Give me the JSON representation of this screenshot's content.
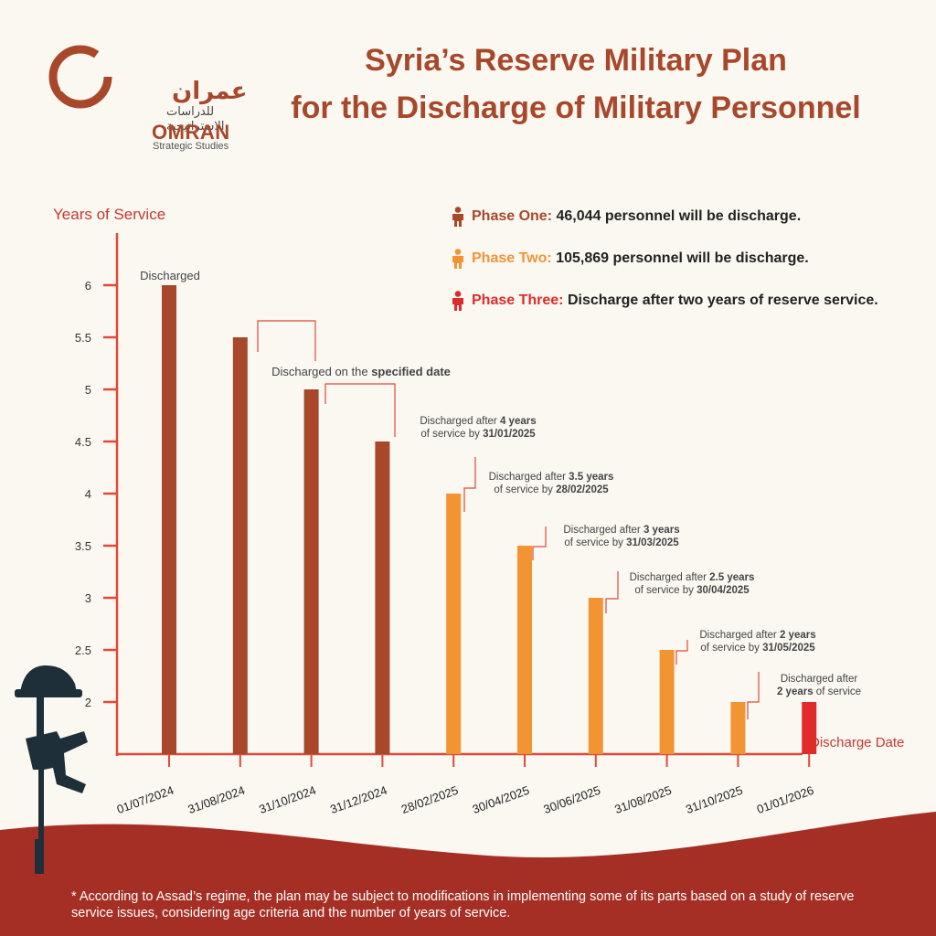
{
  "logo": {
    "arabic": "عمران",
    "arabic_sub": "للدراسات الاستراتيجية",
    "name": "OMRAN",
    "subtitle": "Strategic Studies"
  },
  "title": {
    "line1": "Syria’s Reserve Military Plan",
    "line2": "for the Discharge of Military Personnel"
  },
  "legend": [
    {
      "label": "Phase One:",
      "text": "46,044 personnel will be discharge.",
      "color": "#a8472a"
    },
    {
      "label": "Phase Two:",
      "text": "105,869 personnel will be discharge.",
      "color": "#f39433"
    },
    {
      "label": "Phase Three:",
      "text": "Discharge after two years of reserve service.",
      "color": "#e02b2b"
    }
  ],
  "chart_data": {
    "type": "bar",
    "ylabel": "Years of Service",
    "xlabel": "Discharge Date",
    "ylim": [
      1.5,
      6.5
    ],
    "yticks": [
      2,
      2.5,
      3,
      3.5,
      4,
      4.5,
      5,
      5.5,
      6
    ],
    "categories": [
      "01/07/2024",
      "31/08/2024",
      "31/10/2024",
      "31/12/2024",
      "28/02/2025",
      "30/04/2025",
      "30/06/2025",
      "31/08/2025",
      "31/10/2025",
      "01/01/2026"
    ],
    "values": [
      6,
      5.5,
      5,
      4.5,
      4,
      3.5,
      3,
      2.5,
      2,
      2
    ],
    "phases": [
      "Phase One",
      "Phase One",
      "Phase One",
      "Phase One",
      "Phase Two",
      "Phase Two",
      "Phase Two",
      "Phase Two",
      "Phase Two",
      "Phase Three"
    ],
    "colors": {
      "Phase One": "#a8472a",
      "Phase Two": "#f39433",
      "Phase Three": "#e02b2b",
      "axis": "#e0493a"
    },
    "annotations": [
      {
        "bar": 0,
        "line1": [
          [
            "Discharged",
            false
          ]
        ],
        "line2": []
      },
      {
        "bar": 2,
        "line1": [
          [
            "Discharged on the ",
            false
          ],
          [
            "specified date",
            true
          ]
        ],
        "line2": []
      },
      {
        "bar": 3,
        "line1": [
          [
            "Discharged after ",
            false
          ],
          [
            "4 years",
            true
          ]
        ],
        "line2": [
          [
            "of service by ",
            false
          ],
          [
            "31/01/2025",
            true
          ]
        ]
      },
      {
        "bar": 4,
        "line1": [
          [
            "Discharged after ",
            false
          ],
          [
            "3.5 years",
            true
          ]
        ],
        "line2": [
          [
            "of service by ",
            false
          ],
          [
            "28/02/2025",
            true
          ]
        ]
      },
      {
        "bar": 5,
        "line1": [
          [
            "Discharged after ",
            false
          ],
          [
            "3 years",
            true
          ]
        ],
        "line2": [
          [
            "of service by ",
            false
          ],
          [
            "31/03/2025",
            true
          ]
        ]
      },
      {
        "bar": 6,
        "line1": [
          [
            "Discharged after ",
            false
          ],
          [
            "2.5 years",
            true
          ]
        ],
        "line2": [
          [
            "of service by ",
            false
          ],
          [
            "30/04/2025",
            true
          ]
        ]
      },
      {
        "bar": 7,
        "line1": [
          [
            "Discharged after ",
            false
          ],
          [
            "2 years",
            true
          ]
        ],
        "line2": [
          [
            "of service by ",
            false
          ],
          [
            "31/05/2025",
            true
          ]
        ]
      },
      {
        "bar": 8,
        "line1": [
          [
            "Discharged after",
            false
          ]
        ],
        "line2": [
          [
            "2 years",
            true
          ],
          [
            " of service",
            false
          ]
        ]
      }
    ]
  },
  "footer": {
    "text": "* According to Assad’s regime, the plan may be subject to modifications in implementing some of its parts based on a study of reserve service issues, considering age criteria and the number of years of service."
  },
  "colors": {
    "background": "#fbf8f2",
    "wave": "#a52f25",
    "soldier": "#1f2f3a"
  }
}
